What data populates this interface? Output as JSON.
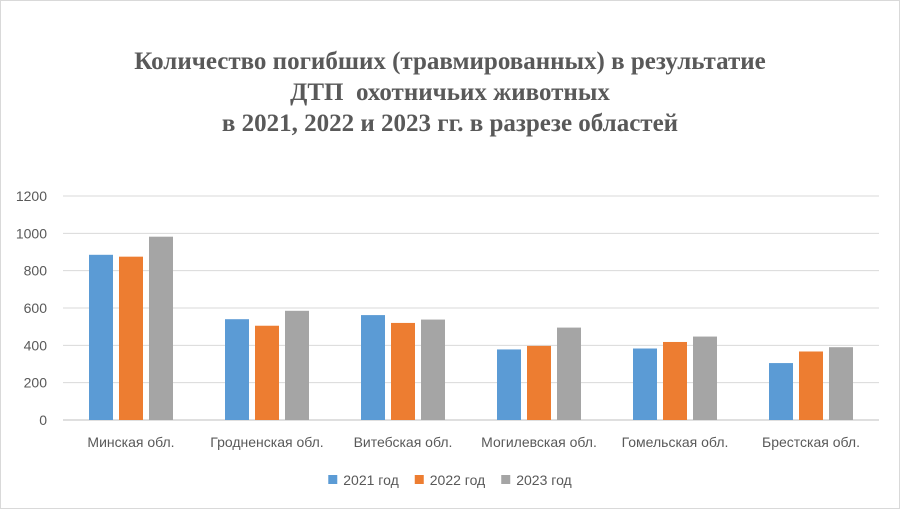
{
  "chart_data": {
    "type": "bar",
    "title_lines": [
      "Количество погибших (травмированных) в результатие",
      "ДТП  охотничьих животных",
      "в 2021, 2022 и 2023 гг. в разрезе областей"
    ],
    "categories": [
      "Минская обл.",
      "Гродненская обл.",
      "Витебская обл.",
      "Могилевская обл.",
      "Гомельская обл.",
      "Брестская обл."
    ],
    "series": [
      {
        "name": "2021 год",
        "color": "#5b9bd5",
        "values": [
          885,
          540,
          562,
          378,
          383,
          305
        ]
      },
      {
        "name": "2022 год",
        "color": "#ed7d31",
        "values": [
          875,
          505,
          520,
          397,
          418,
          367
        ]
      },
      {
        "name": "2023 год",
        "color": "#a5a5a5",
        "values": [
          982,
          585,
          538,
          495,
          447,
          390
        ]
      }
    ],
    "ylim": [
      0,
      1200
    ],
    "yticks": [
      0,
      200,
      400,
      600,
      800,
      1000,
      1200
    ],
    "grid": true,
    "legend_position": "bottom"
  }
}
